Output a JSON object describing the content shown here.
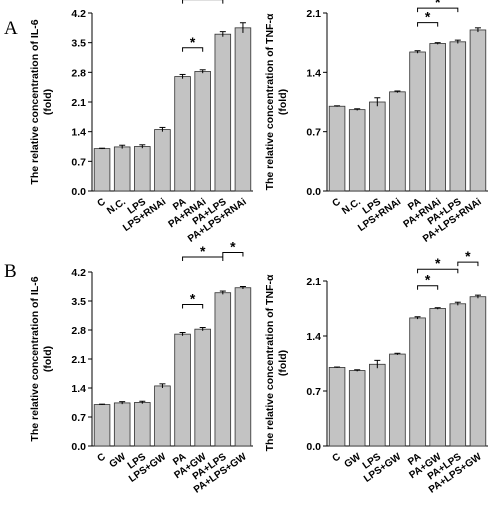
{
  "panels": [
    {
      "letter": "A",
      "row": 0
    },
    {
      "letter": "B",
      "row": 1
    }
  ],
  "chart_data": [
    {
      "type": "bar",
      "panel": "A",
      "ylabel_lines": [
        "The relative concentration of IL-6",
        "(fold)"
      ],
      "categories": [
        "C",
        "N.C.",
        "LPS",
        "LPS+RNAi",
        "PA",
        "PA+RNAi",
        "PA+LPS",
        "PA+LPS+RNAi"
      ],
      "values": [
        1.0,
        1.04,
        1.05,
        1.45,
        2.7,
        2.82,
        3.7,
        3.85
      ],
      "errors": [
        0.01,
        0.04,
        0.04,
        0.05,
        0.05,
        0.04,
        0.06,
        0.12
      ],
      "ylim": [
        0,
        4.2
      ],
      "yticks": [
        0.0,
        0.7,
        1.4,
        2.1,
        2.8,
        3.5,
        4.2
      ],
      "significance": [
        {
          "from": 4,
          "to": 5,
          "label": "*"
        },
        {
          "from": 4,
          "to": 6,
          "label": "*"
        },
        {
          "from": 6,
          "to": 7,
          "label": "*"
        }
      ]
    },
    {
      "type": "bar",
      "panel": "A",
      "ylabel_lines": [
        "The relative concentration of  TNF-α",
        "(fold)"
      ],
      "categories": [
        "C",
        "N.C.",
        "LPS",
        "LPS+RNAi",
        "PA",
        "PA+RNAi",
        "PA+LPS",
        "PA+LPS+RNAi"
      ],
      "values": [
        1.0,
        0.96,
        1.05,
        1.17,
        1.64,
        1.74,
        1.76,
        1.9
      ],
      "errors": [
        0.005,
        0.01,
        0.05,
        0.01,
        0.015,
        0.01,
        0.02,
        0.025
      ],
      "ylim": [
        0,
        2.1
      ],
      "yticks": [
        0.0,
        0.7,
        1.4,
        2.1
      ],
      "significance": [
        {
          "from": 4,
          "to": 5,
          "label": "*"
        },
        {
          "from": 4,
          "to": 6,
          "label": "*"
        },
        {
          "from": 6,
          "to": 7,
          "label": "*"
        }
      ]
    },
    {
      "type": "bar",
      "panel": "B",
      "ylabel_lines": [
        "The  relative concentration of IL-6",
        "(fold)"
      ],
      "categories": [
        "C",
        "GW",
        "LPS",
        "LPS+GW",
        "PA",
        "PA+GW",
        "PA+LPS",
        "PA+LPS+GW"
      ],
      "values": [
        1.0,
        1.04,
        1.05,
        1.45,
        2.7,
        2.82,
        3.7,
        3.82
      ],
      "errors": [
        0.01,
        0.03,
        0.03,
        0.05,
        0.04,
        0.04,
        0.04,
        0.03
      ],
      "ylim": [
        0,
        4.2
      ],
      "yticks": [
        0.0,
        0.7,
        1.4,
        2.1,
        2.8,
        3.5,
        4.2
      ],
      "significance": [
        {
          "from": 4,
          "to": 5,
          "label": "*"
        },
        {
          "from": 4,
          "to": 6,
          "label": "*"
        },
        {
          "from": 6,
          "to": 7,
          "label": "*"
        }
      ]
    },
    {
      "type": "bar",
      "panel": "B",
      "ylabel_lines": [
        "The relative concentration of TNF-α",
        "(fold)"
      ],
      "categories": [
        "C",
        "GW",
        "LPS",
        "LPS+GW",
        "PA",
        "PA+GW",
        "PA+LPS",
        "PA+LPS+GW"
      ],
      "values": [
        1.0,
        0.96,
        1.04,
        1.17,
        1.63,
        1.75,
        1.81,
        1.9
      ],
      "errors": [
        0.005,
        0.01,
        0.05,
        0.01,
        0.015,
        0.01,
        0.02,
        0.02
      ],
      "ylim": [
        0,
        2.1
      ],
      "yticks": [
        0.0,
        0.7,
        1.4,
        2.1
      ],
      "significance": [
        {
          "from": 4,
          "to": 5,
          "label": "*"
        },
        {
          "from": 4,
          "to": 6,
          "label": "*"
        },
        {
          "from": 6,
          "to": 7,
          "label": "*"
        }
      ]
    }
  ],
  "colors": {
    "bar_fill": "#c3c3c3",
    "bar_stroke": "#303030",
    "axis": "#000000"
  }
}
